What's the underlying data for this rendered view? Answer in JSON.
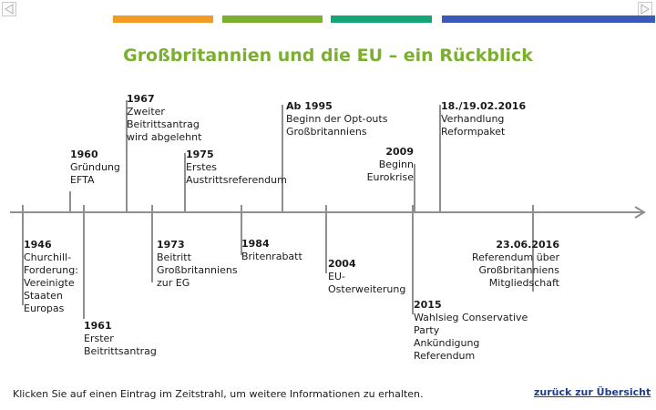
{
  "title": "Großbritannien und die EU – ein Rückblick",
  "colors": {
    "bars": [
      "#f39a24",
      "#7ab02e",
      "#13a577",
      "#3a59b8"
    ],
    "title": "#7ab02e",
    "timeline": "#8f8f8f",
    "link": "#1f3d8c"
  },
  "nav": {
    "prev_icon": "triangle-left-icon",
    "next_icon": "triangle-right-icon"
  },
  "events": {
    "e1946": {
      "year": "1946",
      "desc": "Churchill-\nForderung:\nVereinigte\nStaaten\nEuropas"
    },
    "e1960": {
      "year": "1960",
      "desc": "Gründung\nEFTA"
    },
    "e1961": {
      "year": "1961",
      "desc": "Erster\nBeitrittsantrag"
    },
    "e1967": {
      "year": "1967",
      "desc": "Zweiter\nBeitrittsantrag\nwird abgelehnt"
    },
    "e1973": {
      "year": "1973",
      "desc": "Beitritt\nGroßbritanniens\nzur EG"
    },
    "e1975": {
      "year": "1975",
      "desc": "Erstes\nAustrittsreferendum"
    },
    "e1984": {
      "year": "1984",
      "desc": "Britenrabatt"
    },
    "e1995": {
      "year": "Ab 1995",
      "desc": "Beginn der Opt-outs\nGroßbritanniens"
    },
    "e2004": {
      "year": "2004",
      "desc": "EU-\nOsterweiterung"
    },
    "e2009": {
      "year": "2009",
      "desc": "Beginn\nEurokrise"
    },
    "e2015": {
      "year": "2015",
      "desc": "Wahlsieg Conservative\nParty\nAnkündigung\nReferendum"
    },
    "e2016a": {
      "year": "18./19.02.2016",
      "desc": "Verhandlung\nReformpaket"
    },
    "e2016b": {
      "year": "23.06.2016",
      "desc": "Referendum über\nGroßbritanniens\nMitgliedschaft"
    }
  },
  "footer_text": "Klicken Sie auf einen Eintrag im Zeitstrahl, um weitere Informationen zu erhalten.",
  "back_link": "zurück zur Übersicht"
}
